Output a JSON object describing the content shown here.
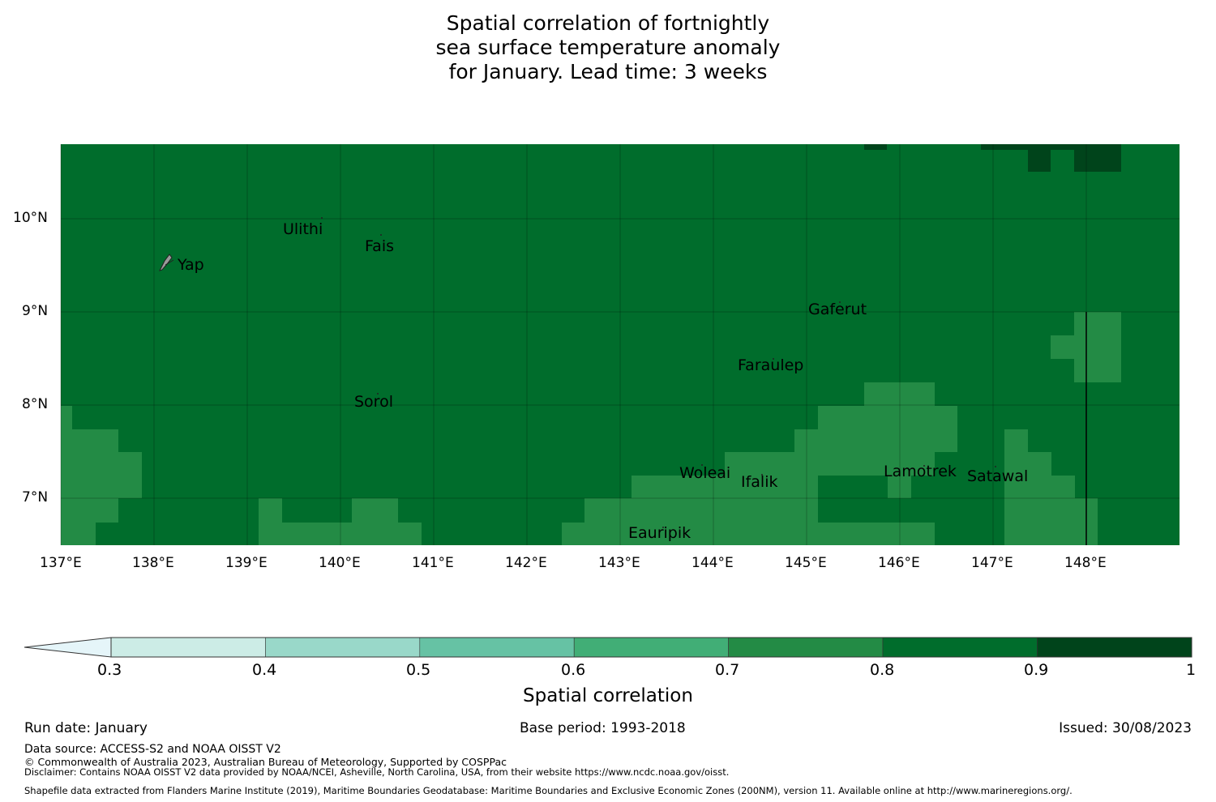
{
  "title": {
    "line1": "Spatial correlation of fortnightly",
    "line2": "sea surface temperature anomaly",
    "line3": "for January. Lead time: 3 weeks"
  },
  "map": {
    "x_ticks": [
      "137°E",
      "138°E",
      "139°E",
      "140°E",
      "141°E",
      "142°E",
      "143°E",
      "144°E",
      "145°E",
      "146°E",
      "147°E",
      "148°E"
    ],
    "y_ticks": [
      "10°N",
      "9°N",
      "8°N",
      "7°N"
    ],
    "islands": [
      {
        "name": "Ulithi",
        "lon": 139.7,
        "lat": 10.0
      },
      {
        "name": "Fais",
        "lon": 140.5,
        "lat": 9.77
      },
      {
        "name": "Yap",
        "lon": 138.1,
        "lat": 9.52
      },
      {
        "name": "Gaferut",
        "lon": 145.4,
        "lat": 9.22
      },
      {
        "name": "Faraulep",
        "lon": 144.5,
        "lat": 8.6
      },
      {
        "name": "Sorol",
        "lon": 140.4,
        "lat": 8.14
      },
      {
        "name": "Woleai",
        "lon": 143.9,
        "lat": 7.37
      },
      {
        "name": "Ifalik",
        "lon": 144.45,
        "lat": 7.25
      },
      {
        "name": "Lamotrek",
        "lon": 146.4,
        "lat": 7.47
      },
      {
        "name": "Satawal",
        "lon": 147.0,
        "lat": 7.37
      },
      {
        "name": "Eauripik",
        "lon": 143.0,
        "lat": 6.7
      }
    ]
  },
  "colorbar": {
    "label": "Spatial correlation",
    "ticks": [
      "0.3",
      "0.4",
      "0.5",
      "0.6",
      "0.7",
      "0.8",
      "0.9",
      "1"
    ],
    "colors": [
      "#e5f5f9",
      "#ccece6",
      "#99d8c9",
      "#66c2a4",
      "#41ae76",
      "#238b45",
      "#006d2c",
      "#00441b"
    ]
  },
  "footer": {
    "run_date": "Run date: January",
    "base_period": "Base period: 1993-2018",
    "issued": "Issued: 30/08/2023",
    "data_source": "Data source: ACCESS-S2 and NOAA OISST V2",
    "copyright": "© Commonwealth of Australia 2023, Australian Bureau of Meteorology, Supported by COSPPac",
    "disclaimer": "Disclaimer: Contains NOAA OISST V2 data provided by NOAA/NCEI, Asheville, North Carolina, USA, from their website https://www.ncdc.noaa.gov/oisst.",
    "shapefile": "Shapefile data extracted from Flanders Marine Institute (2019), Maritime Boundaries Geodatabase: Maritime Boundaries and Exclusive Economic Zones (200NM), version 11. Available online at http://www.marineregions.org/."
  }
}
